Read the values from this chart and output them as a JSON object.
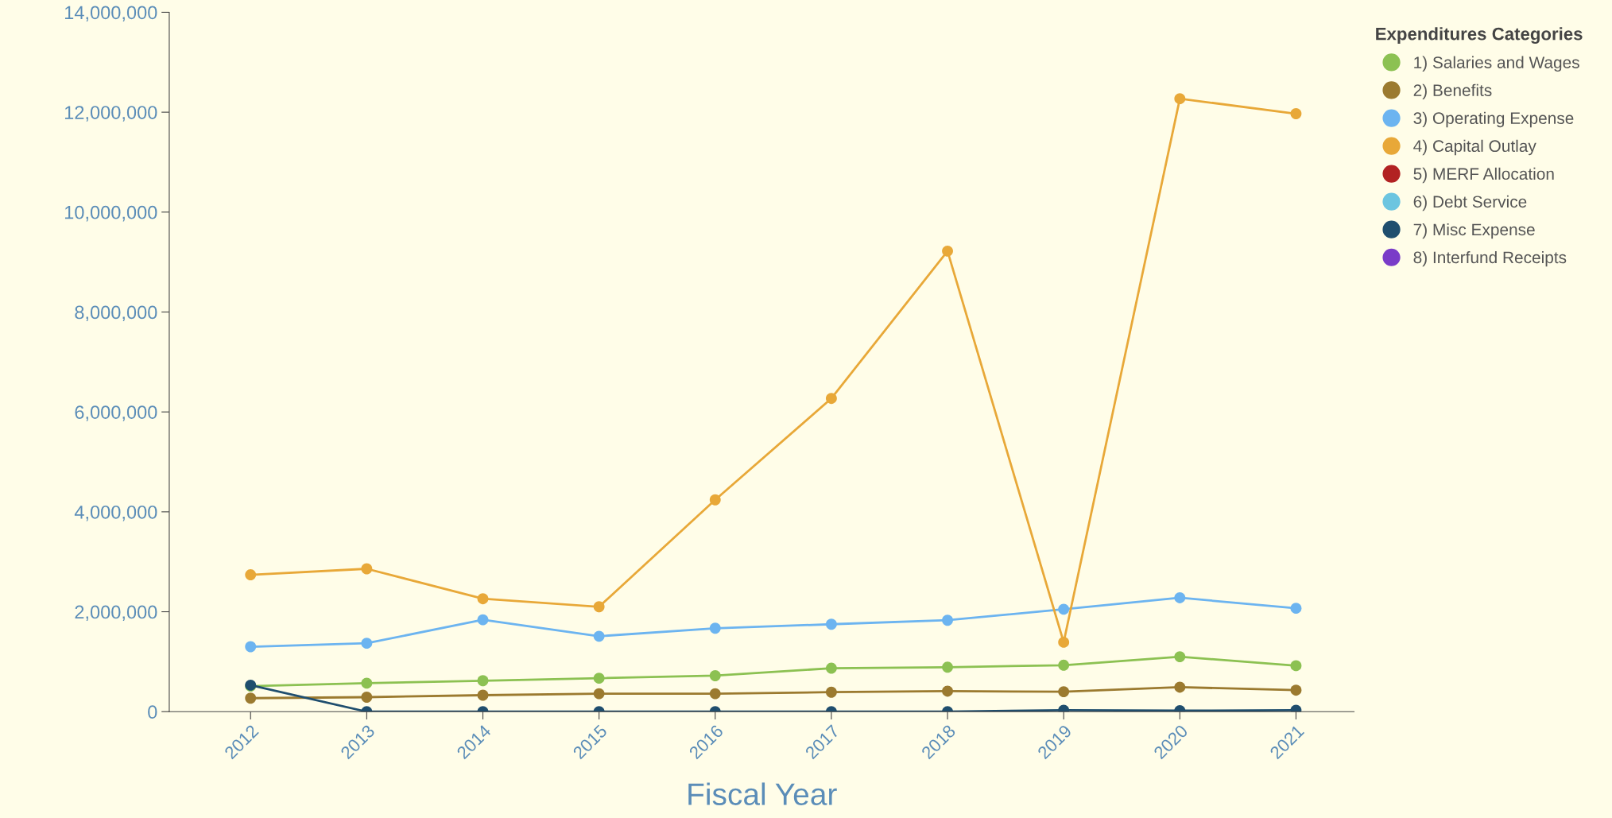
{
  "chart_data": {
    "type": "line",
    "xlabel": "Fiscal Year",
    "legend_title": "Expenditures Categories",
    "categories": [
      "2012",
      "2013",
      "2014",
      "2015",
      "2016",
      "2017",
      "2018",
      "2019",
      "2020",
      "2021"
    ],
    "series": [
      {
        "name": "1) Salaries and Wages",
        "color": "#8cc152",
        "values": [
          510000,
          570000,
          620000,
          670000,
          720000,
          870000,
          890000,
          930000,
          1100000,
          920000
        ]
      },
      {
        "name": "2) Benefits",
        "color": "#9b7a2f",
        "values": [
          270000,
          290000,
          330000,
          360000,
          360000,
          390000,
          410000,
          400000,
          490000,
          430000
        ]
      },
      {
        "name": "3) Operating Expense",
        "color": "#6cb4f0",
        "values": [
          1300000,
          1370000,
          1840000,
          1510000,
          1670000,
          1750000,
          1830000,
          2050000,
          2280000,
          2070000
        ]
      },
      {
        "name": "4) Capital Outlay",
        "color": "#e8a838",
        "values": [
          2740000,
          2860000,
          2260000,
          2100000,
          4240000,
          6270000,
          9220000,
          1390000,
          12270000,
          11970000
        ]
      },
      {
        "name": "5) MERF Allocation",
        "color": "#b22222",
        "values": [
          null,
          null,
          null,
          null,
          null,
          null,
          null,
          null,
          null,
          null
        ]
      },
      {
        "name": "6) Debt Service",
        "color": "#6cc5e0",
        "values": [
          null,
          null,
          null,
          null,
          null,
          null,
          null,
          null,
          null,
          null
        ]
      },
      {
        "name": "7) Misc Expense",
        "color": "#1f4e6e",
        "values": [
          530000,
          0,
          0,
          0,
          0,
          0,
          0,
          30000,
          20000,
          30000
        ]
      },
      {
        "name": "8) Interfund Receipts",
        "color": "#7a3cc8",
        "values": [
          null,
          null,
          null,
          null,
          null,
          null,
          null,
          null,
          null,
          null
        ]
      }
    ],
    "ylim": [
      0,
      14000000
    ],
    "yticks": [
      {
        "value": 0,
        "label": "0"
      },
      {
        "value": 2000000,
        "label": "2,000,000"
      },
      {
        "value": 4000000,
        "label": "4,000,000"
      },
      {
        "value": 6000000,
        "label": "6,000,000"
      },
      {
        "value": 8000000,
        "label": "8,000,000"
      },
      {
        "value": 10000000,
        "label": "10,000,000"
      },
      {
        "value": 12000000,
        "label": "12,000,000"
      },
      {
        "value": 14000000,
        "label": "14,000,000"
      }
    ],
    "grid": false,
    "legend": "top right",
    "marker": "circle",
    "line_style": "solid"
  }
}
